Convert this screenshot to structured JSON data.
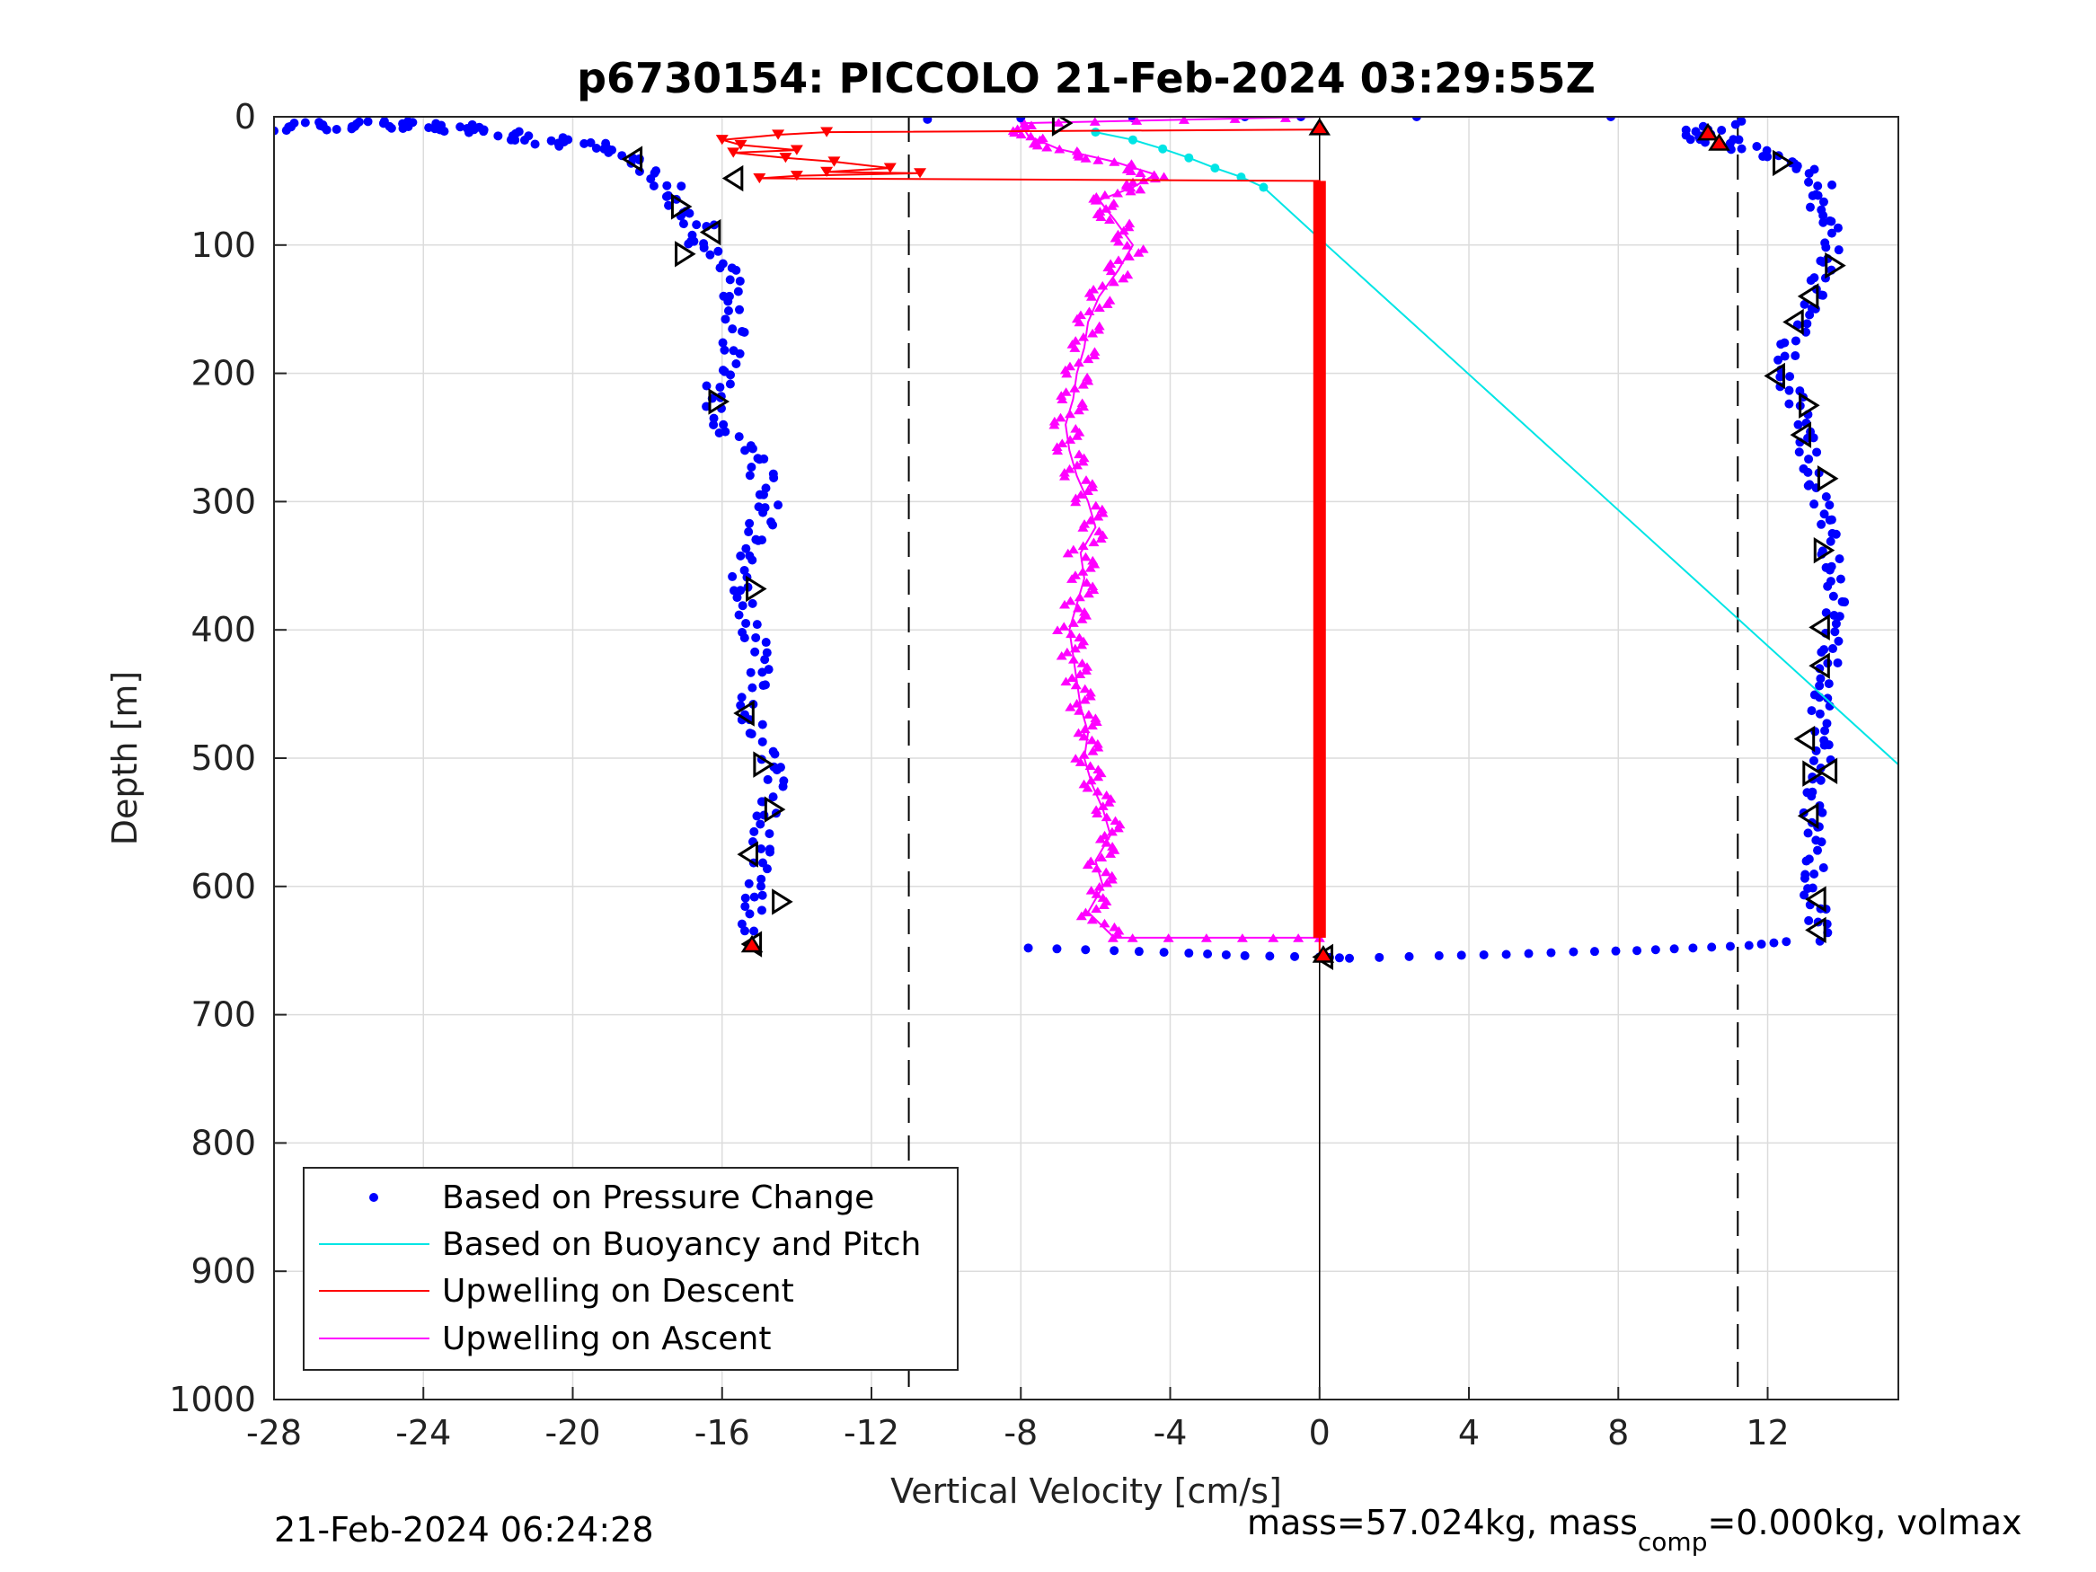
{
  "chart_data": {
    "type": "scatter",
    "title": "p6730154: PICCOLO 21-Feb-2024 03:29:55Z",
    "xlabel": "Vertical Velocity [cm/s]",
    "ylabel": "Depth [m]",
    "xlim": [
      -28,
      15.5
    ],
    "ylim": [
      0,
      1000
    ],
    "y_reversed": true,
    "grid": true,
    "xticks": [
      -28,
      -24,
      -20,
      -16,
      -12,
      -8,
      -4,
      0,
      4,
      8,
      12
    ],
    "yticks": [
      0,
      100,
      200,
      300,
      400,
      500,
      600,
      700,
      800,
      900,
      1000
    ],
    "reference_lines": {
      "dashed_x": [
        -11,
        11.2
      ],
      "solid_x": [
        0
      ]
    },
    "legend": {
      "placement": "bottom-left",
      "entries": [
        "Based on Pressure Change",
        "Based on Buoyancy and Pitch",
        "Upwelling on Descent",
        "Upwelling on Ascent"
      ]
    },
    "series": [
      {
        "name": "Based on Pressure Change",
        "style": "dots",
        "color": "#0000ff",
        "descent_profile": [
          [
            -28,
            8
          ],
          [
            -24.7,
            6
          ],
          [
            -22.4,
            10
          ],
          [
            -21,
            18
          ],
          [
            -19.5,
            22
          ],
          [
            -18.5,
            30
          ],
          [
            -17.8,
            45
          ],
          [
            -17.2,
            60
          ],
          [
            -17.4,
            70
          ],
          [
            -16.5,
            85
          ],
          [
            -16.8,
            95
          ],
          [
            -16.2,
            105
          ],
          [
            -16,
            115
          ],
          [
            -15.8,
            130
          ],
          [
            -15.6,
            150
          ],
          [
            -15.7,
            175
          ],
          [
            -15.9,
            200
          ],
          [
            -16.3,
            215
          ],
          [
            -16.1,
            230
          ],
          [
            -15.8,
            245
          ],
          [
            -15.3,
            260
          ],
          [
            -14.9,
            280
          ],
          [
            -14.6,
            300
          ],
          [
            -15.0,
            320
          ],
          [
            -15.4,
            340
          ],
          [
            -15.6,
            360
          ],
          [
            -15.3,
            380
          ],
          [
            -15.2,
            400
          ],
          [
            -15.0,
            420
          ],
          [
            -15.1,
            440
          ],
          [
            -15.3,
            460
          ],
          [
            -15.0,
            480
          ],
          [
            -14.8,
            500
          ],
          [
            -14.6,
            520
          ],
          [
            -14.7,
            540
          ],
          [
            -14.9,
            560
          ],
          [
            -15.0,
            580
          ],
          [
            -15.2,
            600
          ],
          [
            -15.1,
            620
          ],
          [
            -15.3,
            640
          ]
        ],
        "bottom_transition": [
          [
            -7.8,
            648
          ],
          [
            -5.5,
            650
          ],
          [
            -3.5,
            652
          ],
          [
            -2.0,
            654
          ],
          [
            0,
            655
          ],
          [
            0.8,
            656
          ],
          [
            3.2,
            654
          ],
          [
            5,
            653
          ],
          [
            6.8,
            651
          ],
          [
            8.5,
            650
          ],
          [
            10,
            648
          ],
          [
            11.5,
            646
          ],
          [
            12.5,
            643
          ]
        ],
        "ascent_profile": [
          [
            13.4,
            640
          ],
          [
            13.3,
            620
          ],
          [
            13.2,
            600
          ],
          [
            13.3,
            580
          ],
          [
            13.1,
            560
          ],
          [
            13.2,
            540
          ],
          [
            13.4,
            520
          ],
          [
            13.5,
            500
          ],
          [
            13.3,
            480
          ],
          [
            13.4,
            460
          ],
          [
            13.6,
            440
          ],
          [
            13.7,
            420
          ],
          [
            13.6,
            400
          ],
          [
            13.8,
            380
          ],
          [
            13.9,
            360
          ],
          [
            13.7,
            340
          ],
          [
            13.5,
            320
          ],
          [
            13.4,
            300
          ],
          [
            13.3,
            280
          ],
          [
            13.1,
            260
          ],
          [
            12.9,
            240
          ],
          [
            12.7,
            220
          ],
          [
            12.5,
            200
          ],
          [
            12.6,
            180
          ],
          [
            12.9,
            160
          ],
          [
            13.2,
            140
          ],
          [
            13.6,
            120
          ],
          [
            13.8,
            100
          ],
          [
            13.6,
            85
          ],
          [
            13.2,
            70
          ],
          [
            13.6,
            55
          ],
          [
            13.0,
            40
          ],
          [
            12.0,
            30
          ],
          [
            11.0,
            20
          ],
          [
            9.8,
            15
          ],
          [
            10.5,
            10
          ],
          [
            11.2,
            5
          ]
        ],
        "surface_points": [
          [
            -10.5,
            2
          ],
          [
            -8,
            1
          ],
          [
            -5,
            1
          ],
          [
            -2,
            0
          ],
          [
            -0.5,
            0
          ],
          [
            2.6,
            0
          ],
          [
            7.8,
            0
          ]
        ]
      },
      {
        "name": "Based on Buoyancy and Pitch",
        "style": "line",
        "color": "#00e5e5",
        "values": [
          [
            -6.0,
            12
          ],
          [
            -5.0,
            18
          ],
          [
            -4.2,
            25
          ],
          [
            -3.5,
            32
          ],
          [
            -2.8,
            40
          ],
          [
            -2.1,
            47
          ],
          [
            -1.5,
            55
          ],
          [
            0,
            95
          ],
          [
            15.5,
            505
          ]
        ]
      },
      {
        "name": "Upwelling on Descent",
        "style": "line-triangle-down",
        "color": "#ff0000",
        "values": [
          [
            0,
            10
          ],
          [
            -13.2,
            12
          ],
          [
            -14.5,
            14
          ],
          [
            -16,
            18
          ],
          [
            -15.5,
            22
          ],
          [
            -14.0,
            26
          ],
          [
            -15.7,
            28
          ],
          [
            -14.3,
            32
          ],
          [
            -13.0,
            35
          ],
          [
            -11.5,
            40
          ],
          [
            -13.2,
            43
          ],
          [
            -10.7,
            44
          ],
          [
            -14.0,
            46
          ],
          [
            -15.0,
            48
          ],
          [
            0,
            50
          ],
          [
            0,
            640
          ],
          [
            0,
            655
          ]
        ]
      },
      {
        "name": "Upwelling on Ascent",
        "style": "line-triangle-up",
        "color": "#ff00ff",
        "values": [
          [
            0,
            640
          ],
          [
            -5.5,
            640
          ],
          [
            -6.2,
            620
          ],
          [
            -5.8,
            600
          ],
          [
            -6.0,
            580
          ],
          [
            -5.6,
            560
          ],
          [
            -5.8,
            540
          ],
          [
            -6.1,
            520
          ],
          [
            -6.3,
            500
          ],
          [
            -6.2,
            480
          ],
          [
            -6.4,
            460
          ],
          [
            -6.5,
            440
          ],
          [
            -6.6,
            420
          ],
          [
            -6.7,
            400
          ],
          [
            -6.5,
            380
          ],
          [
            -6.3,
            360
          ],
          [
            -6.4,
            340
          ],
          [
            -6.0,
            320
          ],
          [
            -6.2,
            300
          ],
          [
            -6.5,
            280
          ],
          [
            -6.7,
            260
          ],
          [
            -6.8,
            240
          ],
          [
            -6.6,
            220
          ],
          [
            -6.5,
            200
          ],
          [
            -6.3,
            180
          ],
          [
            -6.2,
            160
          ],
          [
            -5.9,
            140
          ],
          [
            -5.4,
            120
          ],
          [
            -5.0,
            100
          ],
          [
            -5.5,
            80
          ],
          [
            -5.9,
            65
          ],
          [
            -5.0,
            55
          ],
          [
            -4.4,
            45
          ],
          [
            -5.5,
            35
          ],
          [
            -7.0,
            25
          ],
          [
            -7.8,
            15
          ],
          [
            -8.0,
            5
          ],
          [
            0,
            0
          ]
        ]
      }
    ],
    "markers": {
      "open_triangles": [
        [
          -6.9,
          5
        ],
        [
          -18.4,
          33
        ],
        [
          -15.7,
          48
        ],
        [
          -17.1,
          70
        ],
        [
          -16.3,
          90
        ],
        [
          -17.0,
          107
        ],
        [
          -16.1,
          222
        ],
        [
          -15.1,
          368
        ],
        [
          -15.4,
          465
        ],
        [
          -14.9,
          505
        ],
        [
          -14.6,
          540
        ],
        [
          -15.3,
          575
        ],
        [
          -14.4,
          612
        ],
        [
          -15.2,
          645
        ],
        [
          12.4,
          36
        ],
        [
          13.8,
          116
        ],
        [
          13.1,
          140
        ],
        [
          12.7,
          160
        ],
        [
          12.2,
          202
        ],
        [
          13.1,
          225
        ],
        [
          12.9,
          248
        ],
        [
          13.6,
          282
        ],
        [
          13.5,
          338
        ],
        [
          13.4,
          398
        ],
        [
          13.4,
          428
        ],
        [
          13.0,
          485
        ],
        [
          13.2,
          512
        ],
        [
          13.6,
          510
        ],
        [
          13.1,
          545
        ],
        [
          13.3,
          610
        ],
        [
          13.3,
          634
        ],
        [
          0.1,
          655
        ]
      ],
      "filled_red_triangles": [
        [
          10.4,
          12
        ],
        [
          10.7,
          20
        ],
        [
          -15.2,
          645
        ],
        [
          0.1,
          653
        ],
        [
          0,
          8
        ]
      ]
    }
  },
  "footer": {
    "timestamp": "21-Feb-2024 06:24:28",
    "info_pre": "mass=57.024kg, mass",
    "info_sub": "comp",
    "info_post": "=0.000kg, volmax"
  }
}
